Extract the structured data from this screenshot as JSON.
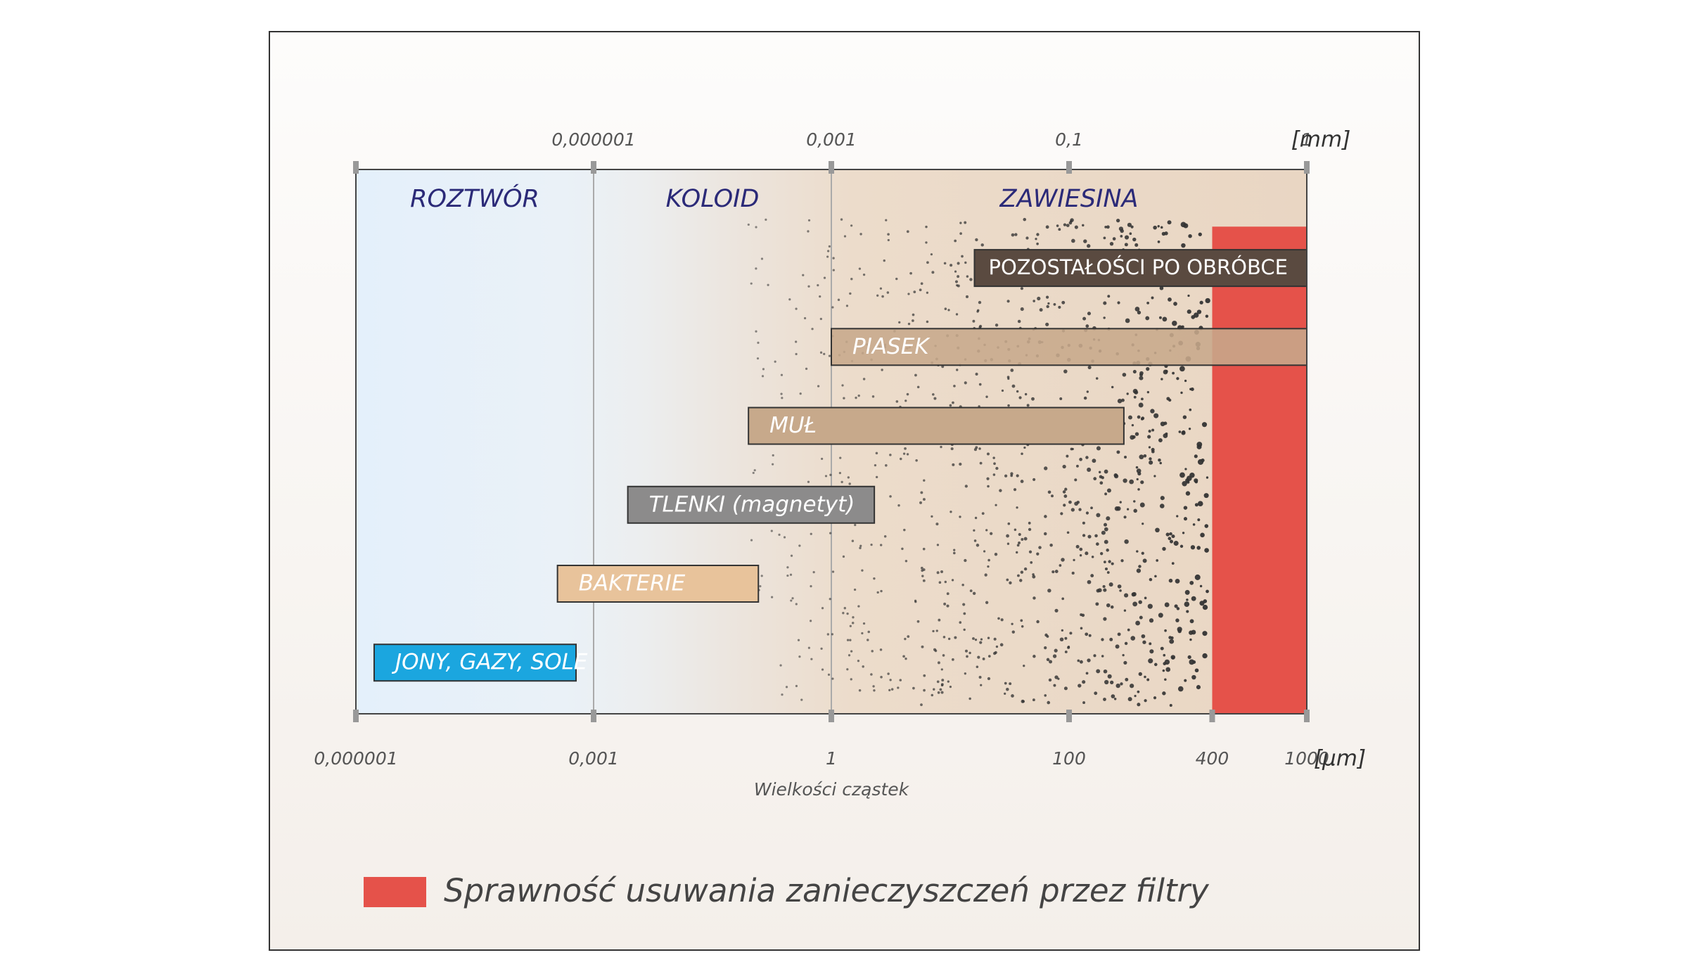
{
  "chart_data": {
    "type": "range-bar",
    "xscale": "log",
    "xlabel": "Wielkości cząstek",
    "xunit": "[µm]",
    "xlim": [
      1e-06,
      1000
    ],
    "xticks": [
      {
        "value": 1e-06,
        "label": "0,000001"
      },
      {
        "value": 0.001,
        "label": "0,001"
      },
      1,
      100,
      400,
      1000
    ],
    "x2unit": "[mm]",
    "x2lim": [
      1e-09,
      1
    ],
    "x2ticks": [
      {
        "value": 1e-06,
        "label": "0,000001"
      },
      {
        "value": 0.001,
        "label": "0,001"
      },
      {
        "value": 0.1,
        "label": "0,1"
      },
      1
    ],
    "regions": [
      {
        "name": "ROZTWÓR",
        "range": [
          1e-06,
          0.001
        ]
      },
      {
        "name": "KOLOID",
        "range": [
          0.001,
          1
        ]
      },
      {
        "name": "ZAWIESINA",
        "range": [
          1,
          1000
        ]
      }
    ],
    "categories": [
      "POZOSTAŁOŚCI PO OBRÓBCE",
      "PIASEK",
      "MUŁ",
      "TLENKI (magnetyt)",
      "BAKTERIE",
      "JONY, GAZY, SOLE"
    ],
    "starts": [
      16,
      1,
      0.09,
      0.0027,
      0.00035,
      1.7e-06
    ],
    "ends": [
      1000,
      1000,
      170,
      2.3,
      0.12,
      0.0006
    ],
    "colors": [
      "#5a4a40",
      "#c7a98b",
      "#c7a98b",
      "#8c8b8b",
      "#e8c39b",
      "#1ba6df"
    ],
    "filter": {
      "name": "Sprawność usuwania zanieczyszczeń przez filtry",
      "color": "#e5524a",
      "range": [
        400,
        1000
      ]
    }
  }
}
